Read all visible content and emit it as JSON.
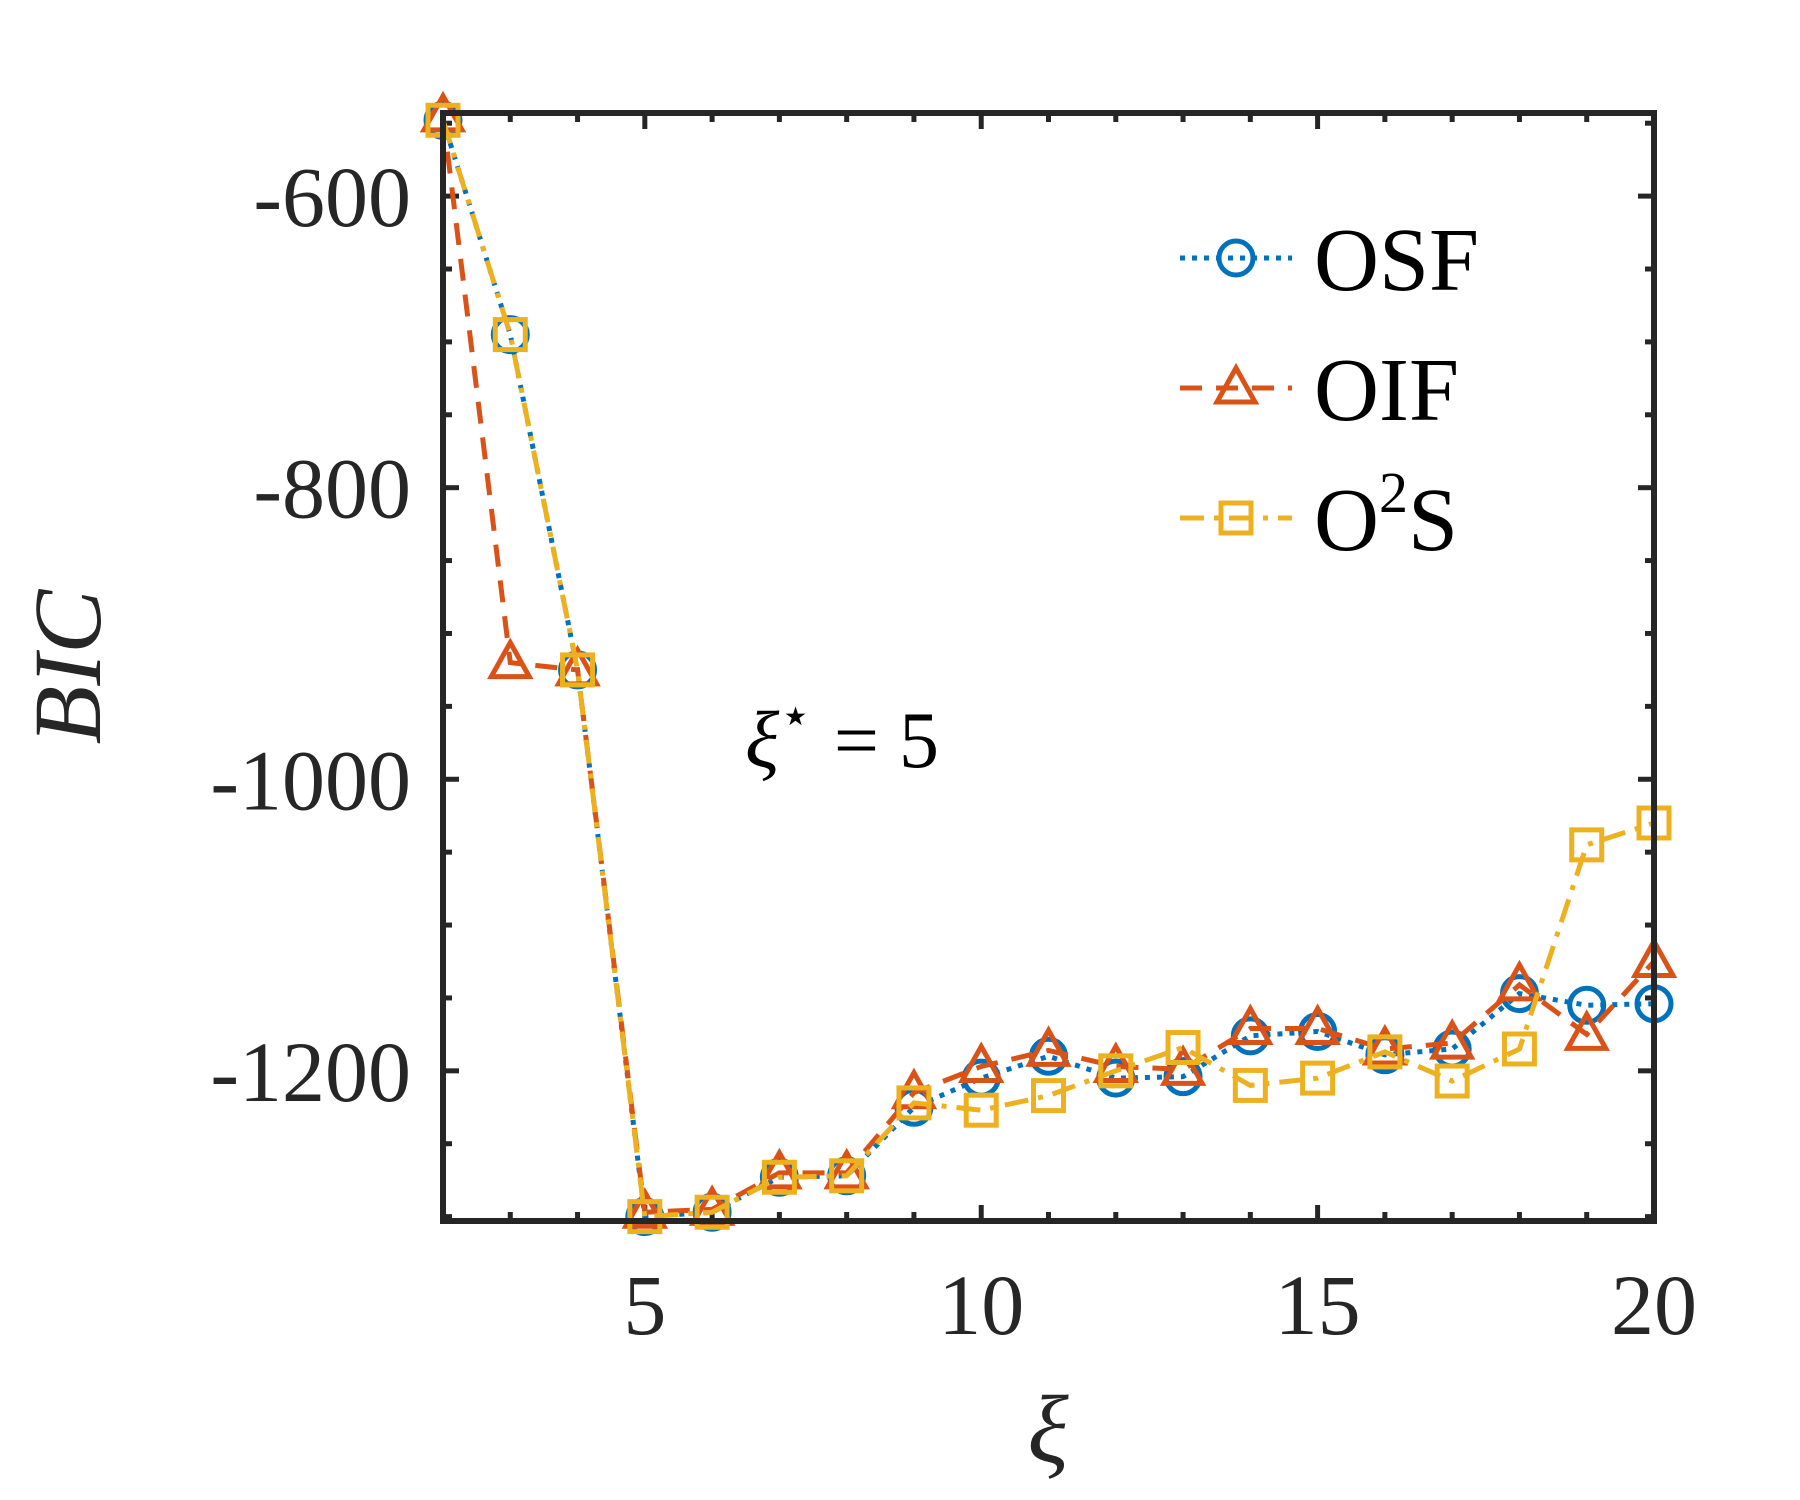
{
  "chart_data": {
    "type": "line",
    "title": "",
    "xlabel": "ξ",
    "ylabel": "BIC",
    "xlim": [
      2,
      20
    ],
    "ylim": [
      -1303,
      -543
    ],
    "xticks": [
      5,
      10,
      15,
      20
    ],
    "xtick_labels": [
      "5",
      "10",
      "15",
      "20"
    ],
    "yticks": [
      -600,
      -800,
      -1000,
      -1200
    ],
    "ytick_labels": [
      "-600",
      "-800",
      "-1000",
      "-1200"
    ],
    "grid": false,
    "legend_position": "top-right",
    "annotation": {
      "symbol": "ξ",
      "superscript": "⋆",
      "text": "= 5"
    },
    "x": [
      2,
      3,
      4,
      5,
      6,
      7,
      8,
      9,
      10,
      11,
      12,
      13,
      14,
      15,
      16,
      17,
      18,
      19,
      20
    ],
    "series": [
      {
        "name": "OSF",
        "legend_main": "OSF",
        "legend_sup": "",
        "legend_tail": "",
        "color": "#0072BD",
        "marker": "circle",
        "linestyle": "dotted",
        "values": [
          -548,
          -695,
          -925,
          -1300,
          -1297,
          -1273,
          -1272,
          -1225,
          -1205,
          -1190,
          -1205,
          -1204,
          -1176,
          -1173,
          -1189,
          -1185,
          -1147,
          -1155,
          -1154
        ]
      },
      {
        "name": "OIF",
        "legend_main": "OIF",
        "legend_sup": "",
        "legend_tail": "",
        "color": "#D95319",
        "marker": "triangle",
        "linestyle": "dashed",
        "values": [
          -545,
          -920,
          -925,
          -1297,
          -1295,
          -1270,
          -1270,
          -1215,
          -1197,
          -1186,
          -1197,
          -1199,
          -1171,
          -1171,
          -1185,
          -1181,
          -1141,
          -1175,
          -1125
        ]
      },
      {
        "name": "O2S",
        "legend_main": "O",
        "legend_sup": "2",
        "legend_tail": "S",
        "color": "#EDB120",
        "marker": "square",
        "linestyle": "dashdot",
        "values": [
          -548,
          -695,
          -925,
          -1300,
          -1297,
          -1273,
          -1272,
          -1222,
          -1227,
          -1217,
          -1200,
          -1184,
          -1210,
          -1205,
          -1187,
          -1207,
          -1185,
          -1045,
          -1030
        ]
      }
    ]
  }
}
